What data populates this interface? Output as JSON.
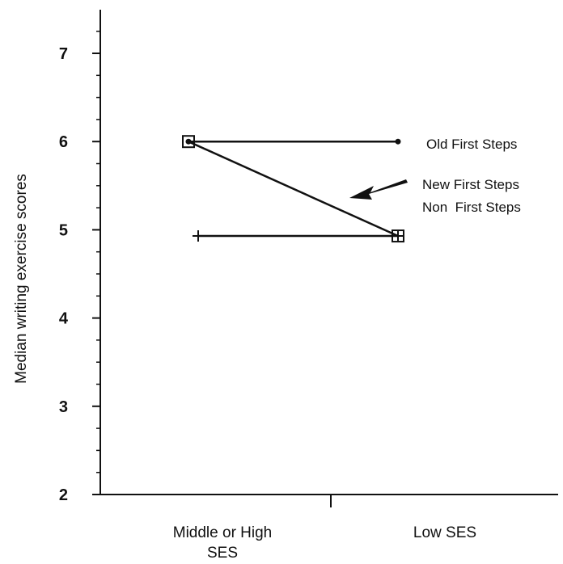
{
  "chart_data": {
    "type": "line",
    "title": "",
    "xlabel": "",
    "ylabel": "Median writing exercise scores",
    "categories": [
      "Middle or High SES",
      "Low SES"
    ],
    "category_lines": [
      [
        "Middle or High",
        "SES"
      ],
      [
        "Low SES"
      ]
    ],
    "ylim": [
      2,
      7.5
    ],
    "yticks": [
      "2",
      "3",
      "4",
      "5",
      "6",
      "7"
    ],
    "grid": false,
    "legend": "none",
    "series": [
      {
        "name": "Old First Steps",
        "values": [
          6,
          6
        ],
        "marker": "dot"
      },
      {
        "name": "New First Steps",
        "values": [
          6,
          4.93
        ],
        "marker": "square"
      },
      {
        "name": "Non  First Steps",
        "values": [
          4.93,
          4.93
        ],
        "marker": "plus"
      }
    ],
    "line_color": "#111111"
  }
}
